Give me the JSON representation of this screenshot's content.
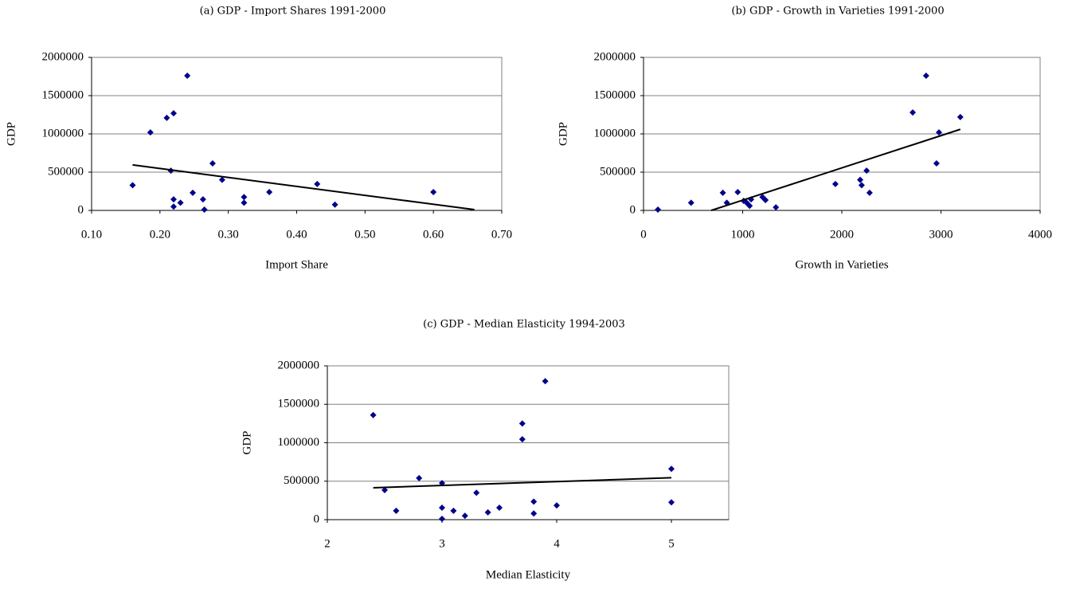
{
  "chart_data": [
    {
      "type": "scatter",
      "title": "(a) GDP - Import Shares 1991-2000",
      "x_label": "Import Share",
      "y_label": "GDP",
      "x": [
        0.16,
        0.186,
        0.21,
        0.22,
        0.24,
        0.216,
        0.22,
        0.22,
        0.23,
        0.248,
        0.263,
        0.265,
        0.277,
        0.291,
        0.323,
        0.323,
        0.36,
        0.43,
        0.456,
        0.6
      ],
      "y": [
        330000,
        1020000,
        1210000,
        1270000,
        1760000,
        520000,
        145000,
        50000,
        100000,
        230000,
        145000,
        10000,
        615000,
        400000,
        175000,
        100000,
        240000,
        345000,
        75000,
        240000
      ],
      "color": "#00008b",
      "trendline": {
        "x": [
          0.16,
          0.66
        ],
        "y": [
          595000,
          10000
        ],
        "color": "#000000"
      },
      "xlim": [
        0.1,
        0.7
      ],
      "xticks": [
        {
          "value": 0.1,
          "label": "0.10"
        },
        {
          "value": 0.2,
          "label": "0.20"
        },
        {
          "value": 0.3,
          "label": "0.30"
        },
        {
          "value": 0.4,
          "label": "0.40"
        },
        {
          "value": 0.5,
          "label": "0.50"
        },
        {
          "value": 0.6,
          "label": "0.60"
        },
        {
          "value": 0.7,
          "label": "0.70"
        }
      ],
      "ylim": [
        0,
        2000000
      ],
      "yticks": [
        0,
        500000,
        1000000,
        1500000,
        2000000
      ],
      "grid": true
    },
    {
      "type": "scatter",
      "title": "(b) GDP - Growth in Varieties 1991-2000",
      "x_label": "Growth in Varieties",
      "y_label": "GDP",
      "x": [
        145,
        480,
        800,
        840,
        950,
        1010,
        1040,
        1070,
        1085,
        1200,
        1230,
        1335,
        1935,
        2185,
        2200,
        2250,
        2280,
        2715,
        2850,
        2955,
        2980,
        3195
      ],
      "y": [
        10000,
        100000,
        230000,
        100000,
        240000,
        125000,
        100000,
        60000,
        145000,
        175000,
        135000,
        40000,
        345000,
        400000,
        330000,
        520000,
        230000,
        1280000,
        1760000,
        615000,
        1020000,
        1220000
      ],
      "color": "#00008b",
      "trendline": {
        "x": [
          683,
          3195
        ],
        "y": [
          0,
          1060000
        ],
        "color": "#000000"
      },
      "xlim": [
        0,
        4000
      ],
      "xticks": [
        0,
        1000,
        2000,
        3000,
        4000
      ],
      "ylim": [
        0,
        2000000
      ],
      "yticks": [
        0,
        500000,
        1000000,
        1500000,
        2000000
      ],
      "grid": true
    },
    {
      "type": "scatter",
      "title": "(c) GDP - Median Elasticity 1994-2003",
      "x_label": "Median Elasticity",
      "y_label": "GDP",
      "x": [
        2.4,
        2.5,
        2.6,
        2.8,
        3.0,
        3.0,
        3.0,
        3.1,
        3.2,
        3.3,
        3.4,
        3.5,
        3.7,
        3.7,
        3.8,
        3.8,
        3.9,
        4.0,
        5.0,
        5.0
      ],
      "y": [
        1360000,
        385000,
        115000,
        540000,
        475000,
        155000,
        10000,
        115000,
        50000,
        350000,
        95000,
        155000,
        1250000,
        1045000,
        235000,
        80000,
        1800000,
        185000,
        660000,
        225000
      ],
      "color": "#00008b",
      "trendline": {
        "x": [
          2.4,
          5.0
        ],
        "y": [
          415000,
          545000
        ],
        "color": "#000000"
      },
      "xlim": [
        2,
        5.5
      ],
      "xticks": [
        2,
        3,
        4,
        5
      ],
      "ylim": [
        0,
        2000000
      ],
      "yticks": [
        0,
        500000,
        1000000,
        1500000,
        2000000
      ],
      "grid": true
    }
  ]
}
